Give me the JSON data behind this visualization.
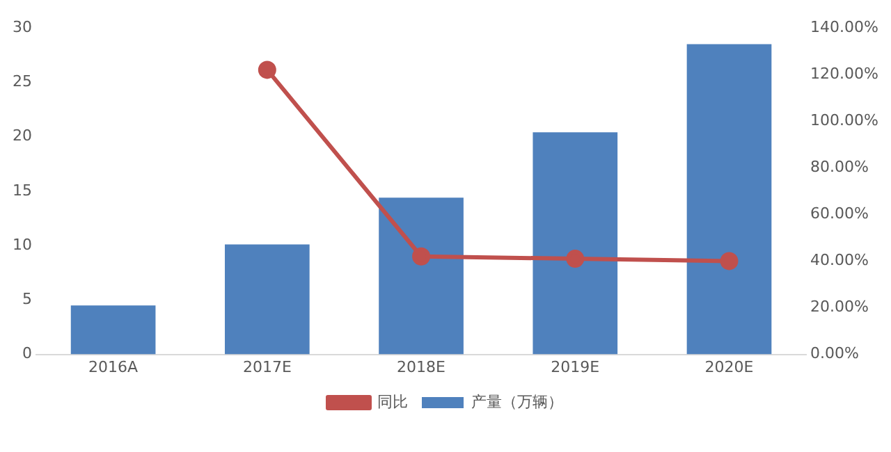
{
  "chart_data": {
    "type": "bar",
    "categories": [
      "2016A",
      "2017E",
      "2018E",
      "2019E",
      "2020E"
    ],
    "series": [
      {
        "name": "产量（万辆）",
        "color": "#4f81bd",
        "values": [
          4.5,
          10.1,
          14.4,
          20.4,
          28.5
        ]
      },
      {
        "name": "同比",
        "type": "line",
        "axis": "y2",
        "color": "#c0504d",
        "marker": "circle",
        "values": [
          null,
          122,
          42,
          41,
          40
        ]
      }
    ],
    "ylim": [
      0,
      30
    ],
    "yticks": [
      0,
      5,
      10,
      15,
      20,
      25,
      30
    ],
    "y2lim": [
      0,
      140
    ],
    "y2ticks": [
      {
        "value": 0,
        "label": "0.00%"
      },
      {
        "value": 20,
        "label": "20.00%"
      },
      {
        "value": 40,
        "label": "40.00%"
      },
      {
        "value": 60,
        "label": "60.00%"
      },
      {
        "value": 80,
        "label": "80.00%"
      },
      {
        "value": 100,
        "label": "100.00%"
      },
      {
        "value": 120,
        "label": "120.00%"
      },
      {
        "value": 140,
        "label": "140.00%"
      }
    ],
    "grid": false,
    "legend": "bottom"
  }
}
